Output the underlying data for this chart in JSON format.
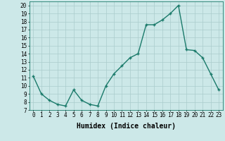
{
  "x": [
    0,
    1,
    2,
    3,
    4,
    5,
    6,
    7,
    8,
    9,
    10,
    11,
    12,
    13,
    14,
    15,
    16,
    17,
    18,
    19,
    20,
    21,
    22,
    23
  ],
  "y": [
    11.2,
    9.0,
    8.2,
    7.7,
    7.5,
    9.5,
    8.2,
    7.7,
    7.5,
    10.0,
    11.5,
    12.5,
    13.5,
    14.0,
    17.6,
    17.6,
    18.2,
    19.0,
    20.0,
    14.5,
    14.4,
    13.5,
    11.5,
    9.5
  ],
  "line_color": "#1a7a6a",
  "marker": "+",
  "marker_size": 3,
  "line_width": 1.0,
  "xlabel": "Humidex (Indice chaleur)",
  "xlim": [
    -0.5,
    23.5
  ],
  "ylim": [
    7,
    20.5
  ],
  "yticks": [
    7,
    8,
    9,
    10,
    11,
    12,
    13,
    14,
    15,
    16,
    17,
    18,
    19,
    20
  ],
  "xticks": [
    0,
    1,
    2,
    3,
    4,
    5,
    6,
    7,
    8,
    9,
    10,
    11,
    12,
    13,
    14,
    15,
    16,
    17,
    18,
    19,
    20,
    21,
    22,
    23
  ],
  "bg_color": "#cce8e8",
  "grid_color": "#aacccc",
  "tick_fontsize": 5.5,
  "xlabel_fontsize": 7
}
